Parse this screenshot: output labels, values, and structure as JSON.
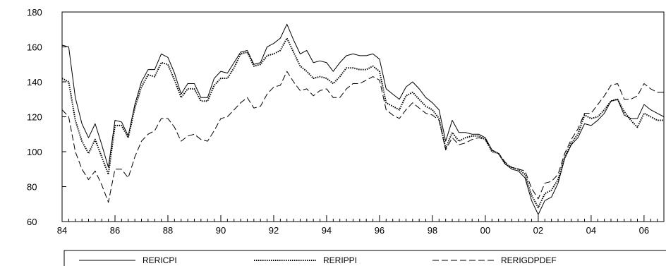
{
  "chart_data": {
    "type": "line",
    "title": "",
    "xlabel": "",
    "ylabel": "",
    "xlim": [
      1984.0,
      2006.75
    ],
    "ylim": [
      60,
      180
    ],
    "yticks": [
      60,
      80,
      100,
      120,
      140,
      160,
      180
    ],
    "xtick_labels": [
      {
        "x": 1984,
        "label": "84"
      },
      {
        "x": 1986,
        "label": "86"
      },
      {
        "x": 1988,
        "label": "88"
      },
      {
        "x": 1990,
        "label": "90"
      },
      {
        "x": 1992,
        "label": "92"
      },
      {
        "x": 1994,
        "label": "94"
      },
      {
        "x": 1996,
        "label": "96"
      },
      {
        "x": 1998,
        "label": "98"
      },
      {
        "x": 2000,
        "label": "00"
      },
      {
        "x": 2002,
        "label": "02"
      },
      {
        "x": 2004,
        "label": "04"
      },
      {
        "x": 2006,
        "label": "06"
      }
    ],
    "grid": false,
    "legend_position": "bottom",
    "x": [
      1984.0,
      1984.25,
      1984.5,
      1984.75,
      1985.0,
      1985.25,
      1985.5,
      1985.75,
      1986.0,
      1986.25,
      1986.5,
      1986.75,
      1987.0,
      1987.25,
      1987.5,
      1987.75,
      1988.0,
      1988.25,
      1988.5,
      1988.75,
      1989.0,
      1989.25,
      1989.5,
      1989.75,
      1990.0,
      1990.25,
      1990.5,
      1990.75,
      1991.0,
      1991.25,
      1991.5,
      1991.75,
      1992.0,
      1992.25,
      1992.5,
      1992.75,
      1993.0,
      1993.25,
      1993.5,
      1993.75,
      1994.0,
      1994.25,
      1994.5,
      1994.75,
      1995.0,
      1995.25,
      1995.5,
      1995.75,
      1996.0,
      1996.25,
      1996.5,
      1996.75,
      1997.0,
      1997.25,
      1997.5,
      1997.75,
      1998.0,
      1998.25,
      1998.5,
      1998.75,
      1999.0,
      1999.25,
      1999.5,
      1999.75,
      2000.0,
      2000.25,
      2000.5,
      2000.75,
      2001.0,
      2001.25,
      2001.5,
      2001.75,
      2002.0,
      2002.25,
      2002.5,
      2002.75,
      2003.0,
      2003.25,
      2003.5,
      2003.75,
      2004.0,
      2004.25,
      2004.5,
      2004.75,
      2005.0,
      2005.25,
      2005.5,
      2005.75,
      2006.0,
      2006.25,
      2006.5,
      2006.75
    ],
    "series": [
      {
        "name": "RERICPI",
        "style": "solid",
        "values": [
          161,
          160,
          131,
          116,
          108,
          116,
          104,
          91,
          118,
          117,
          109,
          127,
          140,
          147,
          147,
          156,
          154,
          145,
          133,
          139,
          139,
          131,
          131,
          142,
          146,
          145,
          151,
          157,
          158,
          150,
          151,
          160,
          162,
          165,
          173,
          164,
          156,
          158,
          151,
          152,
          151,
          146,
          151,
          155,
          156,
          155,
          155,
          156,
          153,
          136,
          133,
          130,
          137,
          140,
          136,
          131,
          128,
          124,
          106,
          118,
          111,
          111,
          110,
          110,
          108,
          101,
          99,
          93,
          90,
          89,
          85,
          72,
          64,
          72,
          74,
          82,
          96,
          104,
          108,
          116,
          115,
          118,
          122,
          129,
          130,
          121,
          119,
          119,
          127,
          124,
          122,
          120
        ]
      },
      {
        "name": "RERIPPI",
        "style": "dotted",
        "values": [
          142,
          140,
          118,
          106,
          99,
          107,
          97,
          87,
          115,
          115,
          108,
          125,
          137,
          144,
          143,
          151,
          150,
          141,
          131,
          136,
          136,
          129,
          129,
          138,
          142,
          142,
          148,
          156,
          157,
          149,
          150,
          155,
          156,
          158,
          165,
          157,
          149,
          146,
          142,
          143,
          142,
          139,
          143,
          148,
          148,
          147,
          147,
          149,
          146,
          128,
          126,
          124,
          132,
          134,
          130,
          126,
          124,
          119,
          102,
          111,
          106,
          108,
          109,
          109,
          107,
          100,
          99,
          93,
          91,
          90,
          87,
          75,
          68,
          76,
          78,
          84,
          97,
          105,
          110,
          121,
          119,
          120,
          124,
          129,
          130,
          123,
          118,
          114,
          122,
          120,
          118,
          118
        ]
      },
      {
        "name": "RERIGDPDEF",
        "style": "dashed",
        "values": [
          124,
          120,
          100,
          90,
          84,
          89,
          81,
          71,
          90,
          90,
          85,
          97,
          106,
          110,
          112,
          119,
          119,
          114,
          106,
          109,
          110,
          107,
          106,
          112,
          119,
          120,
          124,
          128,
          131,
          125,
          126,
          133,
          137,
          138,
          146,
          140,
          135,
          136,
          132,
          135,
          136,
          131,
          131,
          136,
          139,
          139,
          141,
          143,
          141,
          124,
          121,
          119,
          124,
          128,
          125,
          122,
          121,
          118,
          101,
          108,
          104,
          105,
          107,
          108,
          107,
          101,
          99,
          94,
          91,
          90,
          89,
          79,
          73,
          82,
          83,
          87,
          99,
          107,
          113,
          122,
          122,
          127,
          132,
          138,
          139,
          130,
          130,
          132,
          139,
          136,
          134,
          134
        ]
      }
    ]
  }
}
